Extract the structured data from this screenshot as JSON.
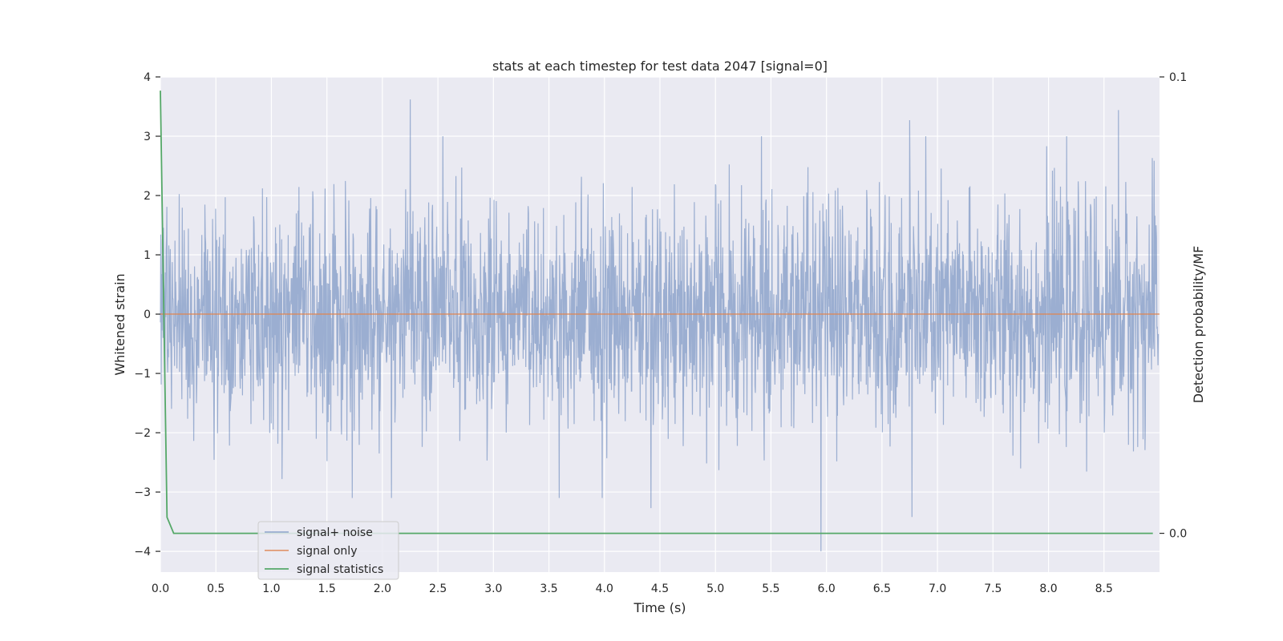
{
  "chart_data": {
    "type": "line",
    "title": "stats at each timestep for test data 2047 [signal=0]",
    "xlabel": "Time (s)",
    "ylabel": "Whitened strain",
    "ylabel_right": "Detection probability/MF",
    "xlim": [
      0.0,
      9.0
    ],
    "ylim": [
      -4.35,
      4.0
    ],
    "ylim_right": [
      -0.0085,
      0.1
    ],
    "x_ticks": [
      "0.0",
      "0.5",
      "1.0",
      "1.5",
      "2.0",
      "2.5",
      "3.0",
      "3.5",
      "4.0",
      "4.5",
      "5.0",
      "5.5",
      "6.0",
      "6.5",
      "7.0",
      "7.5",
      "8.0",
      "8.5"
    ],
    "y_ticks": [
      "4",
      "3",
      "2",
      "1",
      "0",
      "−1",
      "−2",
      "−3",
      "−4"
    ],
    "y_right_ticks": [
      "0.1",
      "0.0"
    ],
    "grid": true,
    "legend_position": "lower-left",
    "series": [
      {
        "name": "signal+ noise",
        "color": "#4c72b0",
        "axis": "left",
        "kind": "noise-like whitened strain, roughly symmetric about 0 with amplitude up to about ±3.6",
        "peaks": [
          [
            2.25,
            3.62
          ],
          [
            8.63,
            3.44
          ],
          [
            6.75,
            3.27
          ],
          [
            5.95,
            -4.0
          ],
          [
            6.77,
            -3.42
          ],
          [
            4.42,
            -3.27
          ]
        ]
      },
      {
        "name": "signal only",
        "color": "#dd8452",
        "axis": "left",
        "x": [
          0.0,
          9.0
        ],
        "values": [
          0.0,
          0.0
        ]
      },
      {
        "name": "signal statistics",
        "color": "#55a868",
        "axis": "right",
        "x": [
          0.0,
          0.06,
          0.12,
          0.5,
          1.0,
          2.0,
          3.0,
          4.0,
          5.0,
          6.0,
          7.0,
          8.0,
          8.94
        ],
        "values": [
          0.097,
          0.0035,
          0.0,
          0.0,
          0.0,
          0.0,
          0.0,
          0.0,
          0.0,
          0.0,
          0.0,
          0.0,
          0.0
        ]
      }
    ]
  }
}
